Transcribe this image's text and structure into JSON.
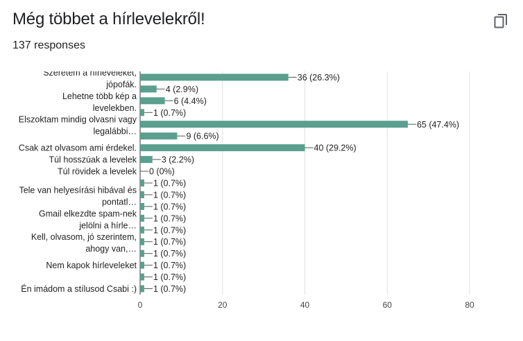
{
  "header": {
    "title": "Még többet a hírlevelekről!",
    "responses": "137 responses",
    "copy_icon": "copy-icon"
  },
  "colors": {
    "bar": "#5b9f8e",
    "grid": "#e0e0e0",
    "axis": "#333333"
  },
  "chart_data": {
    "type": "bar",
    "orientation": "horizontal",
    "xlim": [
      0,
      80
    ],
    "xticks": [
      "0",
      "20",
      "40",
      "60",
      "80"
    ],
    "grid": true,
    "rows": [
      {
        "label_lines": [
          "Szeretem a hírleveleket,",
          "jópofák."
        ],
        "value": 36,
        "text": "36 (26.3%)"
      },
      {
        "label_lines": [],
        "value": 4,
        "text": "4 (2.9%)"
      },
      {
        "label_lines": [
          "Lehetne több kép a",
          "levelekben."
        ],
        "value": 6,
        "text": "6 (4.4%)"
      },
      {
        "label_lines": [],
        "value": 1,
        "text": "1 (0.7%)"
      },
      {
        "label_lines": [
          "Elszoktam mindig olvasni vagy",
          "legalábbi…"
        ],
        "value": 65,
        "text": "65 (47.4%)"
      },
      {
        "label_lines": [],
        "value": 9,
        "text": "9 (6.6%)"
      },
      {
        "label_lines": [
          "Csak azt olvasom ami érdekel."
        ],
        "value": 40,
        "text": "40 (29.2%)"
      },
      {
        "label_lines": [
          "Túl hosszúak a levelek"
        ],
        "value": 3,
        "text": "3 (2.2%)"
      },
      {
        "label_lines": [
          "Túl rövidek a levelek"
        ],
        "value": 0,
        "text": "0 (0%)"
      },
      {
        "label_lines": [],
        "value": 1,
        "text": "1 (0.7%)"
      },
      {
        "label_lines": [
          "Tele van helyesírási hibával és",
          "pontatl…"
        ],
        "value": 1,
        "text": "1 (0.7%)"
      },
      {
        "label_lines": [],
        "value": 1,
        "text": "1 (0.7%)"
      },
      {
        "label_lines": [
          "Gmail elkezdte spam-nek",
          "jelölni a hírle…"
        ],
        "value": 1,
        "text": "1 (0.7%)"
      },
      {
        "label_lines": [],
        "value": 1,
        "text": "1 (0.7%)"
      },
      {
        "label_lines": [
          "Kell, olvasom, jó szerintem,",
          "ahogy van,…"
        ],
        "value": 1,
        "text": "1 (0.7%)"
      },
      {
        "label_lines": [],
        "value": 1,
        "text": "1 (0.7%)"
      },
      {
        "label_lines": [
          "Nem kapok hírleveleket"
        ],
        "value": 1,
        "text": "1 (0.7%)"
      },
      {
        "label_lines": [],
        "value": 1,
        "text": "1 (0.7%)"
      },
      {
        "label_lines": [
          "Én imádom a stílusod Csabi :)"
        ],
        "value": 1,
        "text": "1 (0.7%)"
      }
    ]
  }
}
